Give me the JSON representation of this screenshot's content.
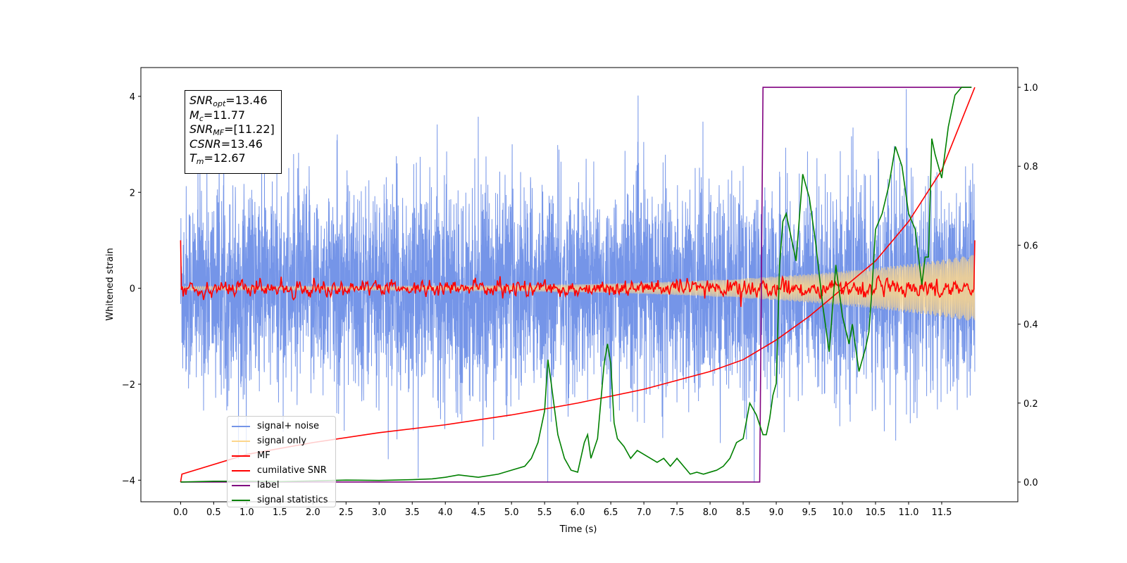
{
  "chart_data": {
    "type": "line",
    "title": "",
    "xlabel": "Time (s)",
    "ylabel": "Whitened strain",
    "y2label": "",
    "xlim": [
      -0.6,
      12.65
    ],
    "ylim": [
      -4.45,
      4.6
    ],
    "y2lim": [
      -0.05,
      1.05
    ],
    "xticks": [
      "0.0",
      "0.5",
      "1.0",
      "1.5",
      "2.0",
      "2.5",
      "3.0",
      "3.5",
      "4.0",
      "4.5",
      "5.0",
      "5.5",
      "6.0",
      "6.5",
      "7.0",
      "7.5",
      "8.0",
      "8.5",
      "9.0",
      "9.5",
      "10.0",
      "10.5",
      "11.0",
      "11.5"
    ],
    "yticks": [
      "−4",
      "−2",
      "0",
      "2",
      "4"
    ],
    "y2ticks": [
      "0.0",
      "0.2",
      "0.4",
      "0.6",
      "0.8",
      "1.0"
    ],
    "grid": false,
    "legend_position": "lower-left",
    "annotation": {
      "snr_opt_sym": "SNR",
      "snr_opt_sub": "opt",
      "snr_opt_val": "=13.46",
      "mc_sym": "M",
      "mc_sub": "c",
      "mc_val": "=11.77",
      "snr_mf_sym": "SNR",
      "snr_mf_sub": "MF",
      "snr_mf_val": "=[11.22]",
      "csnr_sym": "CSNR",
      "csnr_val": "=13.46",
      "tm_sym": "T",
      "tm_sub": "m",
      "tm_val": "=12.67"
    },
    "series": [
      {
        "name": "signal+ noise",
        "color": "#7595e8",
        "axis": "left",
        "style": "dense noise, std ≈ 1.0, spikes to ±4",
        "x_range": [
          0.0,
          12.0
        ]
      },
      {
        "name": "signal only",
        "color": "#fcd68c",
        "axis": "left",
        "style": "chirp, amplitude growing to ≈ 0.7",
        "x_range": [
          0.0,
          12.0
        ]
      },
      {
        "name": "MF",
        "color": "#ff0000",
        "axis": "left",
        "style": "noisy around 0 (±0.2), 1.0 at both ends",
        "x_range": [
          0.0,
          12.0
        ]
      },
      {
        "name": "cumilative SNR",
        "color": "#ff0000",
        "axis": "right",
        "x": [
          0.0,
          0.02,
          1.0,
          2.0,
          3.0,
          4.0,
          5.0,
          6.0,
          7.0,
          8.0,
          8.5,
          9.0,
          9.5,
          10.0,
          10.5,
          11.0,
          11.5,
          12.0
        ],
        "y": [
          0.0,
          0.02,
          0.07,
          0.1,
          0.125,
          0.145,
          0.17,
          0.2,
          0.235,
          0.28,
          0.31,
          0.36,
          0.42,
          0.49,
          0.56,
          0.66,
          0.79,
          1.0
        ]
      },
      {
        "name": "label",
        "color": "#800080",
        "axis": "right",
        "x": [
          0.0,
          8.75,
          8.8,
          11.95
        ],
        "y": [
          0.0,
          0.0,
          1.0,
          1.0
        ]
      },
      {
        "name": "signal statistics",
        "color": "#008000",
        "axis": "right",
        "x": [
          0.0,
          0.5,
          1.0,
          1.5,
          2.0,
          2.5,
          3.0,
          3.5,
          3.8,
          4.0,
          4.2,
          4.5,
          4.8,
          5.0,
          5.2,
          5.3,
          5.4,
          5.5,
          5.55,
          5.6,
          5.7,
          5.8,
          5.9,
          6.0,
          6.1,
          6.15,
          6.2,
          6.3,
          6.4,
          6.45,
          6.5,
          6.55,
          6.6,
          6.7,
          6.8,
          6.9,
          7.0,
          7.1,
          7.2,
          7.3,
          7.4,
          7.5,
          7.6,
          7.7,
          7.8,
          7.9,
          8.0,
          8.1,
          8.2,
          8.3,
          8.4,
          8.5,
          8.6,
          8.7,
          8.8,
          8.85,
          8.9,
          8.95,
          9.0,
          9.05,
          9.1,
          9.15,
          9.2,
          9.3,
          9.4,
          9.5,
          9.6,
          9.7,
          9.8,
          9.9,
          10.0,
          10.1,
          10.15,
          10.2,
          10.25,
          10.3,
          10.35,
          10.4,
          10.45,
          10.5,
          10.6,
          10.7,
          10.8,
          10.9,
          11.0,
          11.1,
          11.2,
          11.25,
          11.3,
          11.35,
          11.4,
          11.5,
          11.6,
          11.7,
          11.8,
          11.9,
          11.95
        ],
        "y": [
          0.0,
          0.002,
          0.002,
          0.001,
          0.003,
          0.005,
          0.004,
          0.006,
          0.008,
          0.012,
          0.018,
          0.012,
          0.02,
          0.03,
          0.04,
          0.06,
          0.1,
          0.18,
          0.31,
          0.25,
          0.12,
          0.06,
          0.03,
          0.025,
          0.1,
          0.12,
          0.06,
          0.11,
          0.3,
          0.35,
          0.3,
          0.15,
          0.11,
          0.09,
          0.06,
          0.08,
          0.07,
          0.06,
          0.05,
          0.06,
          0.04,
          0.06,
          0.04,
          0.02,
          0.025,
          0.02,
          0.025,
          0.03,
          0.04,
          0.06,
          0.1,
          0.11,
          0.2,
          0.17,
          0.12,
          0.12,
          0.16,
          0.22,
          0.25,
          0.55,
          0.66,
          0.68,
          0.64,
          0.56,
          0.78,
          0.72,
          0.6,
          0.45,
          0.33,
          0.55,
          0.42,
          0.35,
          0.4,
          0.34,
          0.28,
          0.31,
          0.34,
          0.38,
          0.5,
          0.64,
          0.68,
          0.75,
          0.85,
          0.8,
          0.68,
          0.64,
          0.5,
          0.57,
          0.57,
          0.87,
          0.83,
          0.77,
          0.9,
          0.98,
          1.0,
          1.0,
          1.0
        ]
      }
    ]
  }
}
